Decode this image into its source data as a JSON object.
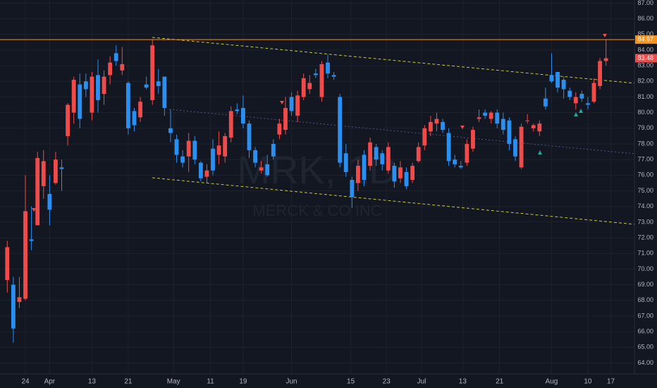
{
  "chart_data": {
    "type": "candlestick",
    "watermark_symbol": "MRK, 1D",
    "watermark_name": "MERCK & CO INC",
    "up_color": "#ef4b4b",
    "down_color": "#2b8ff0",
    "grid": true,
    "x": [
      0,
      1,
      2,
      3,
      4,
      5,
      6,
      7,
      8,
      9,
      10,
      11,
      12,
      13,
      14,
      15,
      16,
      17,
      18,
      19,
      20,
      21,
      22,
      23,
      24,
      25,
      26,
      27,
      28,
      29,
      30,
      31,
      32,
      33,
      34,
      35,
      36,
      37,
      38,
      39,
      40,
      41,
      42,
      43,
      44,
      45,
      46,
      47,
      48,
      49,
      50,
      51,
      52,
      53,
      54,
      55,
      56,
      57,
      58,
      59,
      60,
      61,
      62,
      63,
      64,
      65,
      66,
      67,
      68,
      69,
      70,
      71,
      72,
      73,
      74,
      75,
      76,
      77,
      78,
      79,
      80,
      81,
      82,
      83,
      84,
      85,
      86,
      87,
      88,
      89,
      90,
      91,
      92,
      93,
      94,
      95,
      96,
      97,
      98,
      99
    ],
    "open": [
      69.3,
      69.0,
      67.9,
      68.1,
      71.9,
      72.8,
      75.3,
      74.8,
      75.5,
      76.5,
      78.5,
      80.0,
      81.8,
      82.0,
      80.0,
      82.4,
      81.2,
      82.4,
      83.8,
      82.7,
      81.9,
      80.1,
      79.7,
      81.8,
      80.8,
      82.0,
      82.3,
      79.0,
      78.3,
      77.2,
      77.2,
      78.2,
      76.8,
      75.9,
      77.7,
      77.3,
      77.2,
      78.4,
      80.2,
      80.3,
      79.3,
      77.6,
      76.3,
      76.7,
      78.0,
      78.6,
      78.9,
      81.0,
      79.8,
      81.0,
      81.5,
      82.5,
      81.0,
      83.2,
      82.4,
      81.0,
      77.4,
      75.7,
      75.5,
      77.3,
      76.6,
      77.8,
      77.4,
      76.3,
      76.6,
      75.8,
      76.2,
      75.7,
      76.9,
      77.9,
      78.8,
      79.3,
      79.4,
      78.7,
      77.0,
      76.6,
      76.8,
      77.7,
      79.6,
      80.0,
      79.6,
      80.0,
      79.6,
      79.5,
      78.3,
      76.5,
      79.5,
      79.0,
      78.8,
      80.9,
      82.4,
      82.6,
      82.1,
      81.4,
      80.6,
      81.2,
      80.6,
      80.7,
      81.7,
      83.3
    ],
    "high": [
      71.8,
      69.5,
      69.5,
      76.0,
      74.0,
      77.5,
      77.6,
      76.0,
      77.5,
      77.0,
      80.6,
      82.3,
      82.5,
      82.5,
      82.6,
      83.4,
      82.7,
      83.6,
      84.3,
      84.2,
      82.0,
      80.3,
      81.0,
      82.3,
      84.7,
      82.8,
      82.3,
      80.2,
      78.6,
      77.6,
      78.7,
      78.5,
      76.9,
      76.7,
      78.3,
      78.8,
      78.7,
      80.4,
      80.6,
      81.1,
      79.5,
      77.8,
      76.9,
      77.3,
      78.3,
      79.6,
      81.0,
      81.3,
      81.4,
      82.5,
      82.4,
      82.8,
      83.3,
      83.7,
      82.6,
      81.2,
      78.0,
      75.9,
      77.0,
      77.6,
      78.4,
      78.0,
      77.6,
      78.1,
      76.8,
      76.9,
      76.5,
      76.8,
      78.1,
      79.2,
      79.8,
      80.0,
      79.6,
      79.0,
      77.3,
      76.9,
      78.3,
      79.1,
      80.2,
      80.2,
      80.1,
      80.2,
      80.0,
      79.7,
      78.5,
      79.3,
      79.9,
      79.3,
      79.5,
      81.6,
      83.8,
      82.6,
      82.3,
      81.6,
      81.3,
      81.4,
      81.0,
      82.2,
      83.5,
      84.67
    ],
    "low": [
      68.5,
      65.3,
      67.5,
      68.0,
      71.2,
      72.8,
      74.5,
      72.8,
      75.4,
      75.0,
      77.9,
      79.3,
      79.0,
      81.0,
      79.5,
      80.0,
      80.5,
      81.8,
      83.0,
      82.4,
      78.6,
      78.8,
      79.4,
      81.5,
      80.5,
      81.2,
      79.8,
      78.1,
      76.8,
      76.5,
      76.2,
      76.7,
      75.6,
      75.5,
      76.0,
      76.7,
      76.8,
      78.1,
      79.9,
      79.0,
      77.1,
      76.5,
      76.1,
      75.9,
      77.0,
      78.3,
      78.6,
      79.8,
      79.4,
      80.8,
      81.2,
      82.2,
      80.7,
      82.2,
      82.1,
      76.5,
      75.9,
      73.9,
      75.0,
      75.3,
      76.3,
      76.6,
      76.3,
      76.1,
      75.2,
      75.5,
      75.1,
      75.5,
      76.8,
      77.6,
      78.5,
      78.8,
      78.7,
      76.6,
      76.5,
      76.4,
      76.6,
      77.5,
      79.4,
      79.6,
      79.3,
      79.0,
      78.6,
      77.6,
      76.9,
      76.4,
      79.3,
      78.8,
      78.5,
      80.2,
      81.9,
      81.3,
      80.9,
      80.8,
      80.2,
      80.7,
      80.2,
      80.6,
      81.5,
      83.0
    ],
    "close": [
      71.4,
      66.2,
      68.2,
      73.7,
      71.8,
      77.1,
      76.9,
      73.8,
      77.0,
      76.4,
      80.5,
      82.1,
      79.6,
      81.5,
      82.3,
      80.8,
      82.3,
      83.2,
      83.3,
      83.1,
      79.0,
      79.2,
      80.7,
      81.6,
      84.3,
      81.7,
      80.3,
      78.7,
      77.3,
      76.8,
      78.2,
      77.0,
      75.8,
      76.3,
      76.3,
      77.9,
      78.5,
      80.1,
      80.1,
      79.3,
      77.6,
      76.8,
      76.5,
      76.0,
      77.2,
      79.3,
      80.3,
      80.1,
      81.1,
      82.2,
      81.9,
      82.4,
      83.1,
      82.5,
      82.3,
      76.8,
      76.2,
      74.6,
      76.6,
      75.7,
      78.1,
      77.0,
      76.7,
      77.8,
      75.6,
      76.5,
      75.3,
      76.6,
      77.8,
      79.0,
      79.4,
      79.6,
      78.9,
      76.9,
      76.7,
      76.5,
      78.0,
      78.9,
      79.7,
      79.8,
      80.0,
      79.3,
      78.9,
      78.0,
      77.2,
      79.1,
      79.5,
      79.2,
      79.3,
      80.4,
      82.0,
      81.6,
      81.5,
      81.0,
      81.0,
      80.9,
      80.5,
      81.9,
      83.3,
      83.48
    ],
    "xlim": [
      -1.2,
      103.7
    ],
    "ylim": [
      63.3,
      87.2
    ],
    "xticks": [
      {
        "value": 3,
        "label": "24"
      },
      {
        "value": 7,
        "label": "Apr"
      },
      {
        "value": 14,
        "label": "13"
      },
      {
        "value": 20,
        "label": "21"
      },
      {
        "value": 27.5,
        "label": "May"
      },
      {
        "value": 33.6,
        "label": "11"
      },
      {
        "value": 39,
        "label": "19"
      },
      {
        "value": 47,
        "label": "Jun"
      },
      {
        "value": 56.8,
        "label": "15"
      },
      {
        "value": 62.7,
        "label": "23"
      },
      {
        "value": 68.5,
        "label": "Jul"
      },
      {
        "value": 75.3,
        "label": "13"
      },
      {
        "value": 81.4,
        "label": "21"
      },
      {
        "value": 90,
        "label": "Aug"
      },
      {
        "value": 96,
        "label": "10"
      },
      {
        "value": 99.8,
        "label": "17"
      }
    ],
    "yticks": [
      {
        "value": 64,
        "label": "64.00"
      },
      {
        "value": 65,
        "label": "65.00"
      },
      {
        "value": 66,
        "label": "66.00"
      },
      {
        "value": 67,
        "label": "67.00"
      },
      {
        "value": 68,
        "label": "68.00"
      },
      {
        "value": 69,
        "label": "69.00"
      },
      {
        "value": 70,
        "label": "70.00"
      },
      {
        "value": 71,
        "label": "71.00"
      },
      {
        "value": 72,
        "label": "72.00"
      },
      {
        "value": 73,
        "label": "73.00"
      },
      {
        "value": 74,
        "label": "74.00"
      },
      {
        "value": 75,
        "label": "75.00"
      },
      {
        "value": 76,
        "label": "76.00"
      },
      {
        "value": 77,
        "label": "77.00"
      },
      {
        "value": 78,
        "label": "78.00"
      },
      {
        "value": 79,
        "label": "79.00"
      },
      {
        "value": 80,
        "label": "80.00"
      },
      {
        "value": 81,
        "label": "81.00"
      },
      {
        "value": 82,
        "label": "82.00"
      },
      {
        "value": 83,
        "label": "83.00"
      },
      {
        "value": 84,
        "label": "84.00"
      },
      {
        "value": 85,
        "label": "85.00"
      },
      {
        "value": 86,
        "label": "86.00"
      },
      {
        "value": 87,
        "label": "87.00"
      }
    ],
    "price_lines": [
      {
        "value": 84.67,
        "label": "84.67",
        "color": "#f7931a"
      },
      {
        "value": 83.48,
        "label": "83.48",
        "color": "#ef4b4b"
      }
    ]
  }
}
